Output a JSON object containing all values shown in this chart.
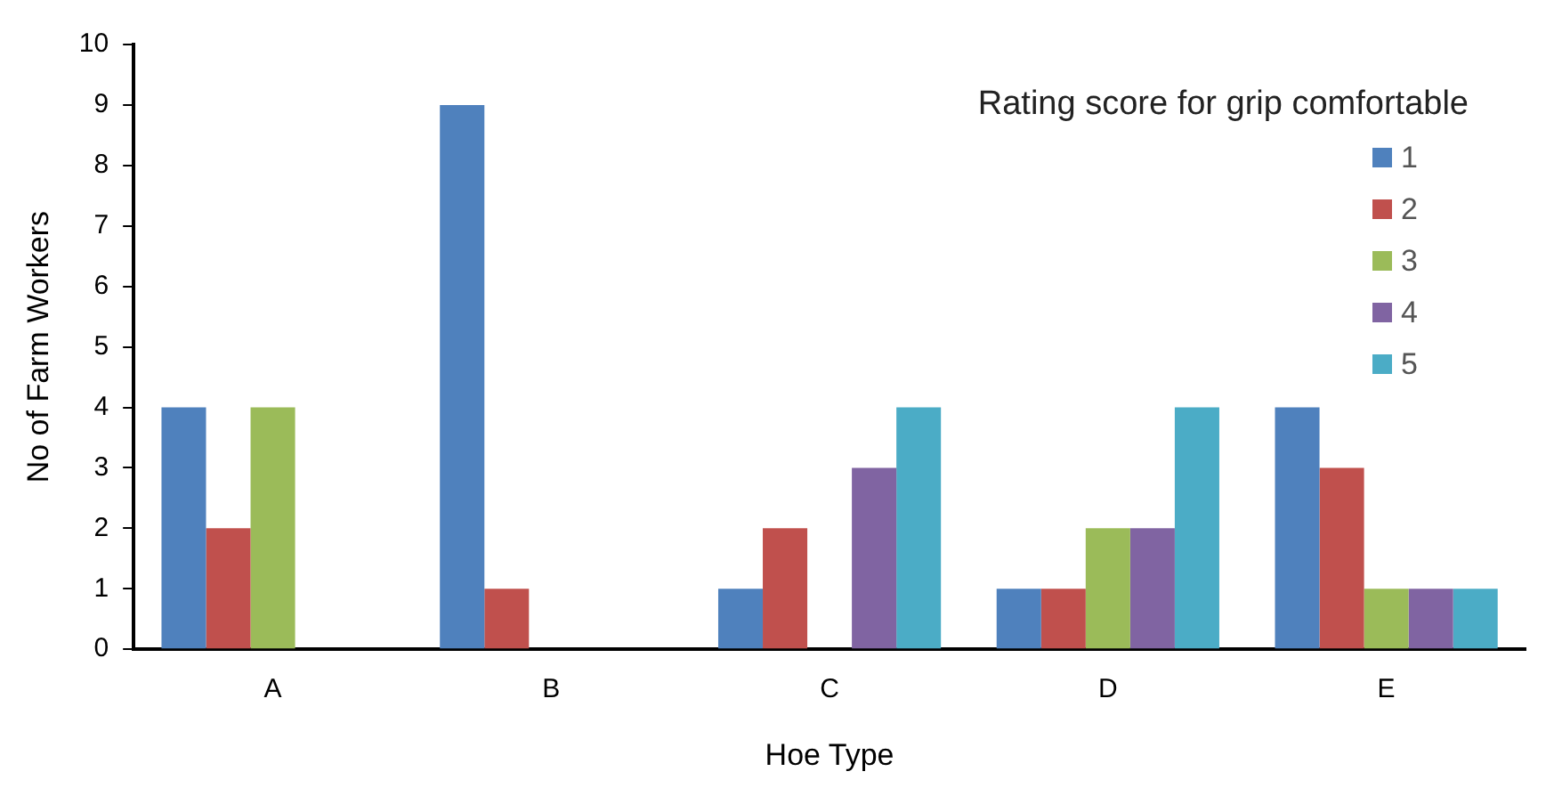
{
  "chart_data": {
    "type": "bar",
    "xlabel": "Hoe Type",
    "ylabel": "No of Farm Workers",
    "legend_title": "Rating score for grip comfortable",
    "categories": [
      "A",
      "B",
      "C",
      "D",
      "E"
    ],
    "series": [
      {
        "name": "1",
        "color": "#4f81bd",
        "values": [
          4,
          9,
          1,
          1,
          4
        ]
      },
      {
        "name": "2",
        "color": "#c0504d",
        "values": [
          2,
          1,
          2,
          1,
          3
        ]
      },
      {
        "name": "3",
        "color": "#9bbb59",
        "values": [
          4,
          0,
          0,
          2,
          1
        ]
      },
      {
        "name": "4",
        "color": "#8064a2",
        "values": [
          0,
          0,
          3,
          2,
          1
        ]
      },
      {
        "name": "5",
        "color": "#4bacc6",
        "values": [
          0,
          0,
          4,
          4,
          1
        ]
      }
    ],
    "ylim": [
      0,
      10
    ],
    "yticks": [
      0,
      1,
      2,
      3,
      4,
      5,
      6,
      7,
      8,
      9,
      10
    ],
    "grid": false,
    "legend": "top right"
  }
}
